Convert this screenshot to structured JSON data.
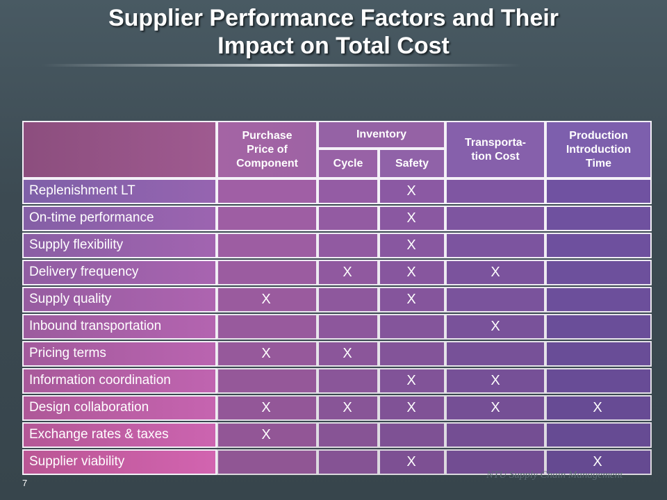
{
  "slide": {
    "title_line1": "Supplier Performance Factors and Their",
    "title_line2": "Impact on Total Cost",
    "slide_number": "7",
    "footer": "NTU Supply Chain Management"
  },
  "table": {
    "headers": {
      "purchase_price": "Purchase Price of Component",
      "inventory": "Inventory",
      "cycle": "Cycle",
      "safety": "Safety",
      "transportation": "Transporta-tion Cost",
      "production": "Production Introduction Time"
    },
    "mark_symbol": "X",
    "rows": [
      {
        "label": "Replenishment LT",
        "marks": [
          "",
          "",
          "X",
          "",
          ""
        ]
      },
      {
        "label": "On-time performance",
        "marks": [
          "",
          "",
          "X",
          "",
          ""
        ]
      },
      {
        "label": "Supply flexibility",
        "marks": [
          "",
          "",
          "X",
          "",
          ""
        ]
      },
      {
        "label": "Delivery frequency",
        "marks": [
          "",
          "X",
          "X",
          "X",
          ""
        ]
      },
      {
        "label": "Supply quality",
        "marks": [
          "X",
          "",
          "X",
          "",
          ""
        ]
      },
      {
        "label": "Inbound transportation",
        "marks": [
          "",
          "",
          "",
          "X",
          ""
        ]
      },
      {
        "label": "Pricing terms",
        "marks": [
          "X",
          "X",
          "",
          "",
          ""
        ]
      },
      {
        "label": "Information coordination",
        "marks": [
          "",
          "",
          "X",
          "X",
          ""
        ]
      },
      {
        "label": "Design collaboration",
        "marks": [
          "X",
          "X",
          "X",
          "X",
          "X"
        ]
      },
      {
        "label": "Exchange rates & taxes",
        "marks": [
          "X",
          "",
          "",
          "",
          ""
        ]
      },
      {
        "label": "Supplier viability",
        "marks": [
          "",
          "",
          "X",
          "",
          "X"
        ]
      }
    ]
  }
}
